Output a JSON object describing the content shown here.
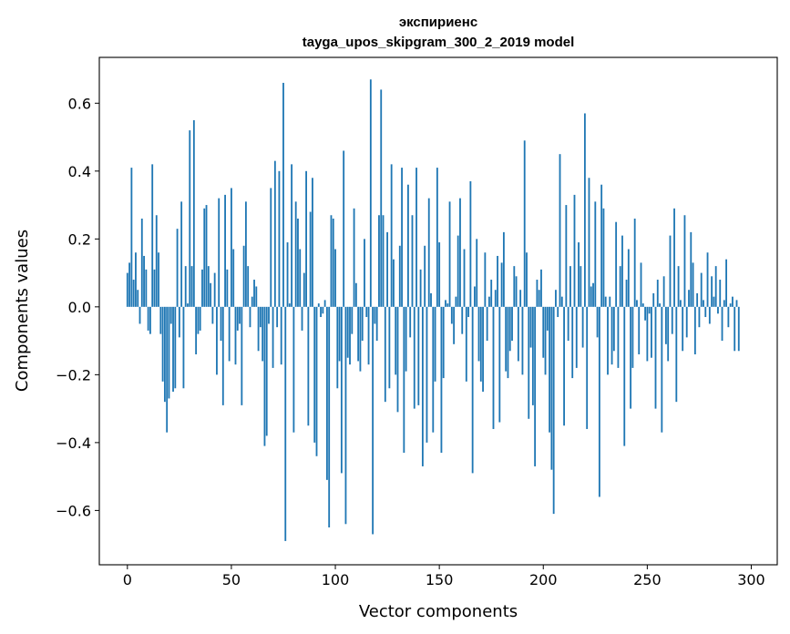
{
  "chart_data": {
    "type": "bar",
    "title_line1": "экспириенс",
    "title_line2": "tayga_upos_skipgram_300_2_2019 model",
    "xlabel": "Vector components",
    "ylabel": "Components values",
    "xlim": [
      -13.5,
      312.5
    ],
    "ylim": [
      -0.76,
      0.735
    ],
    "xticks": [
      0,
      50,
      100,
      150,
      200,
      250,
      300
    ],
    "xtick_labels": [
      "0",
      "50",
      "100",
      "150",
      "200",
      "250",
      "300"
    ],
    "yticks": [
      -0.6,
      -0.4,
      -0.2,
      0.0,
      0.2,
      0.4,
      0.6
    ],
    "ytick_labels": [
      "−0.6",
      "−0.4",
      "−0.2",
      "0.0",
      "0.2",
      "0.4",
      "0.6"
    ],
    "bar_color": "#1f77b4",
    "values": [
      0.1,
      0.13,
      0.41,
      0.08,
      0.16,
      0.05,
      -0.05,
      0.26,
      0.15,
      0.11,
      -0.07,
      -0.08,
      0.42,
      0.11,
      0.27,
      0.16,
      -0.08,
      -0.22,
      -0.28,
      -0.37,
      -0.27,
      -0.05,
      -0.25,
      -0.24,
      0.23,
      -0.09,
      0.31,
      -0.24,
      0.12,
      0.01,
      0.52,
      0.12,
      0.55,
      -0.14,
      -0.08,
      -0.07,
      0.11,
      0.29,
      0.3,
      0.12,
      0.07,
      -0.05,
      0.1,
      -0.2,
      0.32,
      -0.1,
      -0.29,
      0.33,
      0.11,
      -0.16,
      0.35,
      0.17,
      -0.17,
      -0.07,
      -0.05,
      -0.29,
      0.18,
      0.31,
      0.12,
      -0.06,
      0.03,
      0.08,
      0.06,
      -0.13,
      -0.06,
      -0.16,
      -0.41,
      -0.38,
      -0.05,
      0.35,
      -0.18,
      0.43,
      -0.06,
      0.4,
      -0.17,
      0.66,
      -0.69,
      0.19,
      0.01,
      0.42,
      -0.37,
      0.31,
      0.26,
      0.17,
      -0.07,
      0.1,
      0.4,
      -0.35,
      0.28,
      0.38,
      -0.4,
      -0.44,
      0.01,
      -0.03,
      -0.02,
      0.02,
      -0.51,
      -0.65,
      0.27,
      0.26,
      0.17,
      -0.24,
      -0.16,
      -0.49,
      0.46,
      -0.64,
      -0.15,
      -0.17,
      -0.08,
      0.29,
      0.07,
      -0.16,
      -0.19,
      -0.1,
      0.2,
      -0.03,
      -0.17,
      0.67,
      -0.67,
      -0.05,
      -0.1,
      0.27,
      0.64,
      0.27,
      -0.28,
      0.22,
      -0.24,
      0.42,
      0.14,
      -0.2,
      -0.31,
      0.18,
      0.41,
      -0.43,
      -0.19,
      0.36,
      -0.09,
      0.27,
      -0.3,
      0.41,
      -0.29,
      0.11,
      -0.47,
      0.18,
      -0.4,
      0.32,
      0.04,
      -0.37,
      -0.22,
      0.41,
      0.19,
      -0.43,
      -0.21,
      0.02,
      0.01,
      0.31,
      -0.05,
      -0.11,
      0.03,
      0.21,
      0.32,
      -0.08,
      0.17,
      -0.22,
      -0.03,
      0.37,
      -0.49,
      0.06,
      0.2,
      -0.16,
      -0.22,
      -0.25,
      0.16,
      -0.1,
      0.03,
      0.08,
      -0.36,
      0.05,
      0.15,
      -0.34,
      0.13,
      0.22,
      -0.19,
      -0.21,
      -0.13,
      -0.1,
      0.12,
      0.09,
      -0.16,
      0.05,
      -0.2,
      0.49,
      0.16,
      -0.33,
      -0.12,
      -0.29,
      -0.47,
      0.08,
      0.05,
      0.11,
      -0.15,
      -0.2,
      -0.07,
      -0.37,
      -0.48,
      -0.61,
      0.05,
      -0.03,
      0.45,
      0.03,
      -0.35,
      0.3,
      -0.1,
      0.12,
      -0.21,
      0.33,
      -0.18,
      0.19,
      0.12,
      -0.12,
      0.57,
      -0.36,
      0.38,
      0.06,
      0.07,
      0.31,
      -0.09,
      -0.56,
      0.36,
      0.29,
      0.03,
      -0.2,
      0.03,
      -0.17,
      -0.13,
      0.25,
      -0.18,
      0.12,
      0.21,
      -0.41,
      0.08,
      0.17,
      -0.3,
      -0.18,
      0.26,
      0.02,
      -0.14,
      0.13,
      0.01,
      -0.04,
      -0.16,
      -0.02,
      -0.15,
      0.04,
      -0.3,
      0.08,
      0.01,
      -0.37,
      0.09,
      -0.11,
      -0.16,
      0.21,
      -0.08,
      0.29,
      -0.28,
      0.12,
      0.02,
      -0.13,
      0.27,
      -0.09,
      0.05,
      0.22,
      0.13,
      -0.14,
      0.04,
      -0.06,
      0.1,
      0.02,
      -0.03,
      0.16,
      -0.05,
      0.09,
      0.03,
      0.12,
      -0.02,
      0.08,
      -0.1,
      0.02,
      0.14,
      -0.06,
      0.01,
      0.03,
      -0.13,
      0.02,
      -0.13
    ]
  }
}
